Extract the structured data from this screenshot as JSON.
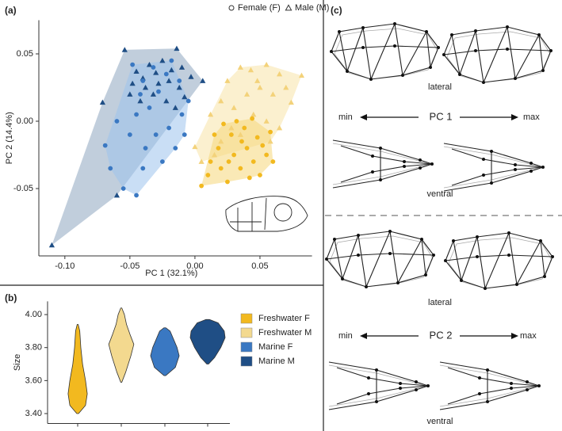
{
  "chart_data": [
    {
      "type": "scatter",
      "panel_label": "(a)",
      "xlabel": "PC 1 (32.1%)",
      "ylabel": "PC 2 (14.4%)",
      "xlim": [
        -0.12,
        0.09
      ],
      "ylim": [
        -0.1,
        0.075
      ],
      "xticks": [
        {
          "value": -0.1,
          "label": "-0.10"
        },
        -0.05,
        {
          "value": 0,
          "label": "0.00"
        },
        0.05
      ],
      "yticks": [
        -0.05,
        {
          "value": 0,
          "label": "0.00"
        },
        0.05
      ],
      "legend": [
        {
          "label": "Female (F)",
          "marker": "circle"
        },
        {
          "label": "Male (M)",
          "marker": "triangle"
        }
      ],
      "series": [
        {
          "name": "Marine M",
          "color": "#1f4e85",
          "marker": "triangle",
          "hull_color": "#8ea5bf",
          "x": [
            -0.11,
            -0.071,
            -0.054,
            -0.014,
            0.006,
            -0.003,
            -0.045,
            -0.04,
            -0.035,
            -0.03,
            -0.025,
            -0.02,
            -0.028,
            -0.038,
            -0.048,
            -0.032,
            -0.018,
            -0.012,
            -0.042,
            -0.022,
            -0.01,
            -0.05,
            -0.015,
            -0.06,
            -0.008
          ],
          "values": [
            -0.092,
            0.014,
            0.053,
            0.054,
            0.03,
            0.033,
            0.037,
            0.032,
            0.042,
            0.036,
            0.045,
            0.03,
            0.028,
            0.025,
            0.028,
            0.02,
            0.038,
            0.025,
            0.015,
            0.015,
            0.04,
            0.02,
            0.01,
            -0.055,
            0.018
          ]
        },
        {
          "name": "Marine F",
          "color": "#3a78c2",
          "marker": "circle",
          "hull_color": "#9cc2ec",
          "x": [
            -0.069,
            -0.065,
            -0.055,
            -0.045,
            -0.04,
            -0.05,
            -0.045,
            -0.038,
            -0.03,
            -0.025,
            -0.02,
            -0.015,
            -0.01,
            -0.035,
            -0.028,
            -0.04,
            -0.022,
            -0.012,
            -0.032,
            -0.048,
            -0.005,
            -0.06,
            -0.018,
            -0.008,
            -0.042
          ],
          "values": [
            -0.018,
            -0.035,
            -0.05,
            -0.055,
            -0.035,
            -0.01,
            0.005,
            -0.02,
            -0.01,
            -0.03,
            -0.005,
            -0.02,
            0.005,
            0.01,
            0.022,
            0.03,
            0.035,
            0.03,
            0.04,
            0.042,
            0.015,
            0.0,
            0.045,
            -0.01,
            0.02
          ]
        },
        {
          "name": "Freshwater M",
          "color": "#f3d27a",
          "marker": "triangle",
          "hull_color": "#f7e3a8",
          "x": [
            0.0,
            0.005,
            0.012,
            0.02,
            0.025,
            0.035,
            0.043,
            0.055,
            0.065,
            0.082,
            0.074,
            0.06,
            0.05,
            0.04,
            0.03,
            0.045,
            0.055,
            0.065,
            0.035,
            0.02,
            0.015,
            0.048,
            0.07,
            0.028,
            0.058
          ],
          "values": [
            -0.019,
            -0.03,
            0.005,
            0.015,
            0.03,
            0.04,
            0.038,
            0.042,
            0.035,
            0.034,
            0.014,
            0.02,
            0.025,
            0.02,
            0.01,
            0.005,
            0.0,
            -0.005,
            -0.01,
            -0.015,
            -0.025,
            0.03,
            0.025,
            -0.005,
            -0.015
          ]
        },
        {
          "name": "Freshwater F",
          "color": "#f2b91f",
          "marker": "circle",
          "hull_color": "#f5d77a",
          "x": [
            0.005,
            0.01,
            0.012,
            0.018,
            0.02,
            0.025,
            0.028,
            0.03,
            0.035,
            0.038,
            0.04,
            0.045,
            0.048,
            0.05,
            0.055,
            0.058,
            0.015,
            0.032,
            0.042,
            0.022,
            0.06,
            0.036,
            0.026,
            0.044,
            0.052
          ],
          "values": [
            -0.048,
            -0.04,
            -0.03,
            -0.02,
            -0.035,
            -0.045,
            -0.01,
            -0.025,
            -0.035,
            -0.005,
            -0.02,
            -0.03,
            -0.012,
            -0.04,
            -0.025,
            -0.008,
            -0.01,
            0.0,
            -0.042,
            -0.002,
            -0.03,
            -0.015,
            -0.03,
            0.002,
            -0.018
          ]
        }
      ]
    },
    {
      "type": "violin",
      "panel_label": "(b)",
      "ylabel": "Size",
      "ylim": [
        3.34,
        4.08
      ],
      "yticks": [
        {
          "value": 3.4,
          "label": "3.40"
        },
        {
          "value": 3.6,
          "label": "3.60"
        },
        {
          "value": 3.8,
          "label": "3.80"
        },
        {
          "value": 4,
          "label": "4.00"
        }
      ],
      "series": [
        {
          "name": "Freshwater F",
          "color": "#f2b91f",
          "y": [
            3.4,
            3.45,
            3.52,
            3.6,
            3.7,
            3.8,
            3.9,
            3.94
          ],
          "width": [
            0.05,
            0.45,
            0.55,
            0.45,
            0.28,
            0.18,
            0.12,
            0.03
          ]
        },
        {
          "name": "Freshwater M",
          "color": "#f3d98f",
          "y": [
            3.59,
            3.65,
            3.75,
            3.82,
            3.88,
            3.94,
            4.0,
            4.04
          ],
          "width": [
            0.03,
            0.25,
            0.55,
            0.72,
            0.5,
            0.3,
            0.18,
            0.03
          ]
        },
        {
          "name": "Marine F",
          "color": "#3a78c2",
          "y": [
            3.63,
            3.68,
            3.75,
            3.8,
            3.85,
            3.9,
            3.92
          ],
          "width": [
            0.05,
            0.6,
            0.82,
            0.7,
            0.5,
            0.3,
            0.05
          ]
        },
        {
          "name": "Marine M",
          "color": "#1f4e85",
          "y": [
            3.7,
            3.74,
            3.8,
            3.86,
            3.9,
            3.95,
            3.97
          ],
          "width": [
            0.05,
            0.4,
            0.75,
            1.0,
            0.95,
            0.6,
            0.1
          ]
        }
      ]
    }
  ],
  "panel_c": {
    "panel_label": "(c)",
    "pc1": {
      "top_view": "lateral",
      "min": "min",
      "axis": "PC 1",
      "max": "max",
      "bottom_view": "ventral"
    },
    "pc2": {
      "top_view": "lateral",
      "min": "min",
      "axis": "PC 2",
      "max": "max",
      "bottom_view": "ventral"
    }
  }
}
